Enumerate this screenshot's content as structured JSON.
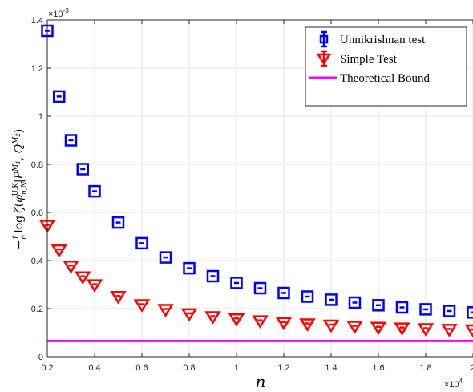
{
  "chart_data": {
    "type": "scatter",
    "xlabel": "n",
    "ylabel": "−(1/n) log ζ(φ_{n,N}^{U,K} | P^{M1}, Q^{M2})",
    "x_exponent_label": "×10",
    "x_exponent_power": "4",
    "y_exponent_label": "×10",
    "y_exponent_power": "-3",
    "xlim": [
      2000,
      20000
    ],
    "ylim": [
      0,
      0.0014
    ],
    "grid": true,
    "legend_position": "top-right",
    "x_ticks": [
      2000,
      4000,
      6000,
      8000,
      10000,
      12000,
      14000,
      16000,
      18000,
      20000
    ],
    "x_tick_labels": [
      "0.2",
      "0.4",
      "0.6",
      "0.8",
      "1",
      "1.2",
      "1.4",
      "1.6",
      "1.8",
      "2"
    ],
    "y_ticks": [
      0,
      0.0002,
      0.0004,
      0.0006,
      0.0008,
      0.001,
      0.0012,
      0.0014
    ],
    "y_tick_labels": [
      "0",
      "0.2",
      "0.4",
      "0.6",
      "0.8",
      "1",
      "1.2",
      "1.4"
    ],
    "series": [
      {
        "name": "Unnikrishnan test",
        "marker": "square-errorbar",
        "color": "#0000ff",
        "x": [
          2000,
          2500,
          3000,
          3500,
          4000,
          5000,
          6000,
          7000,
          8000,
          9000,
          10000,
          11000,
          12000,
          13000,
          14000,
          15000,
          16000,
          17000,
          18000,
          19000,
          20000
        ],
        "y": [
          0.001355,
          0.001082,
          0.0009,
          0.00078,
          0.000688,
          0.000558,
          0.000472,
          0.000413,
          0.000368,
          0.000335,
          0.000307,
          0.000285,
          0.000265,
          0.00025,
          0.000237,
          0.000225,
          0.000214,
          0.000205,
          0.000197,
          0.00019,
          0.000184
        ]
      },
      {
        "name": "Simple Test",
        "marker": "triangle-down-errorbar",
        "color": "#ff0000",
        "x": [
          2000,
          2500,
          3000,
          3500,
          4000,
          5000,
          6000,
          7000,
          8000,
          9000,
          10000,
          11000,
          12000,
          13000,
          14000,
          15000,
          16000,
          17000,
          18000,
          19000,
          20000
        ],
        "y": [
          0.000545,
          0.000443,
          0.000376,
          0.000331,
          0.000298,
          0.000249,
          0.000215,
          0.000195,
          0.000177,
          0.000165,
          0.000156,
          0.000148,
          0.000141,
          0.000135,
          0.00013,
          0.000125,
          0.000121,
          0.000118,
          0.000115,
          0.000112,
          0.00011
        ]
      },
      {
        "name": "Theoretical Bound",
        "marker": "line",
        "color": "#ff00ff",
        "x": [
          2000,
          20000
        ],
        "y": [
          6.55e-05,
          6.55e-05
        ]
      }
    ]
  }
}
